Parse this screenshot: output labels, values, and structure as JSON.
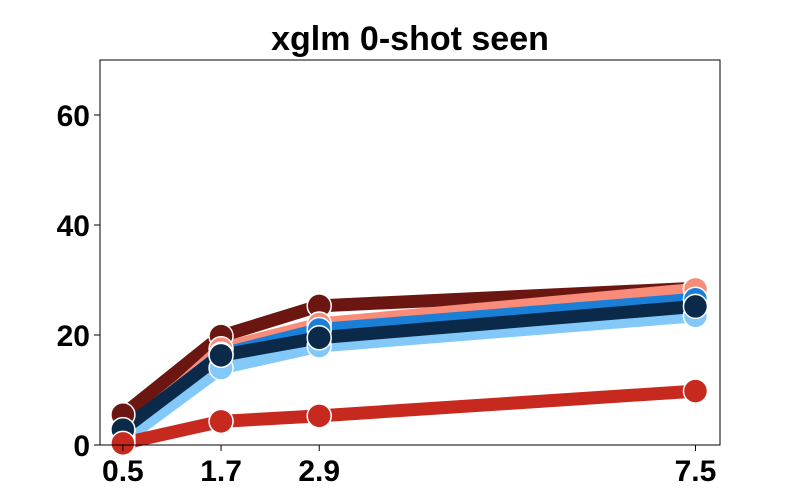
{
  "chart_data": {
    "type": "line",
    "title": "xglm 0-shot seen",
    "xlabel": "",
    "ylabel": "",
    "x": [
      0.5,
      1.7,
      2.9,
      7.5
    ],
    "x_tick_labels": [
      "0.5",
      "1.7",
      "2.9",
      "7.5"
    ],
    "y_ticks": [
      0,
      20,
      40,
      60
    ],
    "y_tick_labels": [
      "0",
      "20",
      "40",
      "60"
    ],
    "xlim": [
      0.22,
      7.8
    ],
    "ylim": [
      0,
      70
    ],
    "grid": false,
    "legend": "none",
    "series": [
      {
        "color": "#6b1610",
        "values": [
          5.5,
          19.8,
          25.3,
          28.5
        ]
      },
      {
        "color": "#f98b79",
        "values": [
          1.5,
          17.5,
          22.0,
          28.3
        ]
      },
      {
        "color": "#1a7fd6",
        "values": [
          2.5,
          16.5,
          21.0,
          26.5
        ]
      },
      {
        "color": "#82c8f8",
        "values": [
          0.8,
          14.0,
          18.0,
          23.5
        ]
      },
      {
        "color": "#0b2a4a",
        "values": [
          2.8,
          16.3,
          19.5,
          25.2
        ]
      },
      {
        "color": "#c7291f",
        "values": [
          0.3,
          4.3,
          5.3,
          9.8
        ]
      }
    ]
  }
}
